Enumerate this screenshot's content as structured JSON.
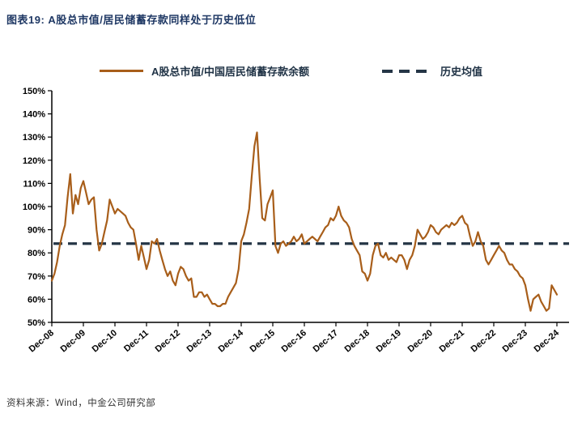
{
  "header": {
    "title": "图表19: A股总市值/居民储蓄存款同样处于历史低位"
  },
  "legend": {
    "series_label": "A股总市值/中国居民储蓄存款余额",
    "mean_label": "历史均值"
  },
  "footer": {
    "source": "资料来源：Wind，中金公司研究部"
  },
  "colors": {
    "title": "#1F3864",
    "legend_text": "#1F3245",
    "series_line": "#A85E1A",
    "mean_line": "#253646",
    "axis": "#000000",
    "tick_text": "#000000"
  },
  "chart_data": {
    "type": "line",
    "title": "",
    "xlabel": "",
    "ylabel": "",
    "ylim": [
      50,
      150
    ],
    "ytick_suffix": "%",
    "y_tick_labels": [
      "50%",
      "60%",
      "70%",
      "80%",
      "90%",
      "100%",
      "110%",
      "120%",
      "130%",
      "140%",
      "150%"
    ],
    "x_frequency": "monthly",
    "x_start_label": "Dec-08",
    "x_tick_labels": [
      "Dec-08",
      "Dec-09",
      "Dec-10",
      "Dec-11",
      "Dec-12",
      "Dec-13",
      "Dec-14",
      "Dec-15",
      "Dec-16",
      "Dec-17",
      "Dec-18",
      "Dec-19",
      "Dec-20",
      "Dec-21",
      "Dec-22",
      "Dec-23",
      "Dec-24"
    ],
    "x_tick_every_n_points": 12,
    "grid": false,
    "legend_position": "top-center",
    "series": [
      {
        "name": "A股总市值/中国居民储蓄存款余额",
        "style": "solid",
        "color": "#A85E1A",
        "unit": "%",
        "values": [
          68,
          71,
          76,
          83,
          88,
          92,
          104,
          114,
          97,
          105,
          101,
          108,
          111,
          106,
          101,
          103,
          104,
          90,
          81,
          84,
          89,
          94,
          103,
          100,
          97,
          99,
          98,
          97,
          96,
          93,
          91,
          90,
          84,
          77,
          83,
          78,
          73,
          77,
          85,
          84,
          86,
          81,
          77,
          73,
          70,
          72,
          68,
          66,
          71,
          74,
          73,
          70,
          68,
          69,
          61,
          61,
          63,
          63,
          61,
          62,
          60,
          58,
          58,
          57,
          57,
          58,
          58,
          61,
          63,
          65,
          67,
          73,
          85,
          88,
          93,
          99,
          113,
          126,
          132,
          112,
          95,
          94,
          101,
          104,
          107,
          83,
          80,
          84,
          85,
          83,
          84,
          85,
          87,
          85,
          86,
          88,
          84,
          85,
          86,
          87,
          86,
          85,
          87,
          89,
          91,
          92,
          95,
          94,
          96,
          100,
          96,
          94,
          93,
          91,
          86,
          83,
          81,
          79,
          72,
          71,
          68,
          71,
          79,
          83,
          84,
          79,
          78,
          80,
          77,
          78,
          77,
          76,
          79,
          79,
          77,
          73,
          77,
          79,
          83,
          90,
          88,
          86,
          87,
          89,
          92,
          91,
          89,
          88,
          90,
          91,
          92,
          91,
          93,
          92,
          93,
          95,
          96,
          93,
          92,
          87,
          83,
          85,
          89,
          85,
          83,
          77,
          75,
          77,
          79,
          81,
          83,
          81,
          80,
          77,
          75,
          75,
          73,
          72,
          70,
          69,
          66,
          60,
          55,
          60,
          61,
          62,
          59,
          57,
          55,
          56,
          66,
          64,
          62
        ]
      },
      {
        "name": "历史均值",
        "style": "dashed",
        "color": "#253646",
        "unit": "%",
        "constant_value": 84
      }
    ]
  }
}
